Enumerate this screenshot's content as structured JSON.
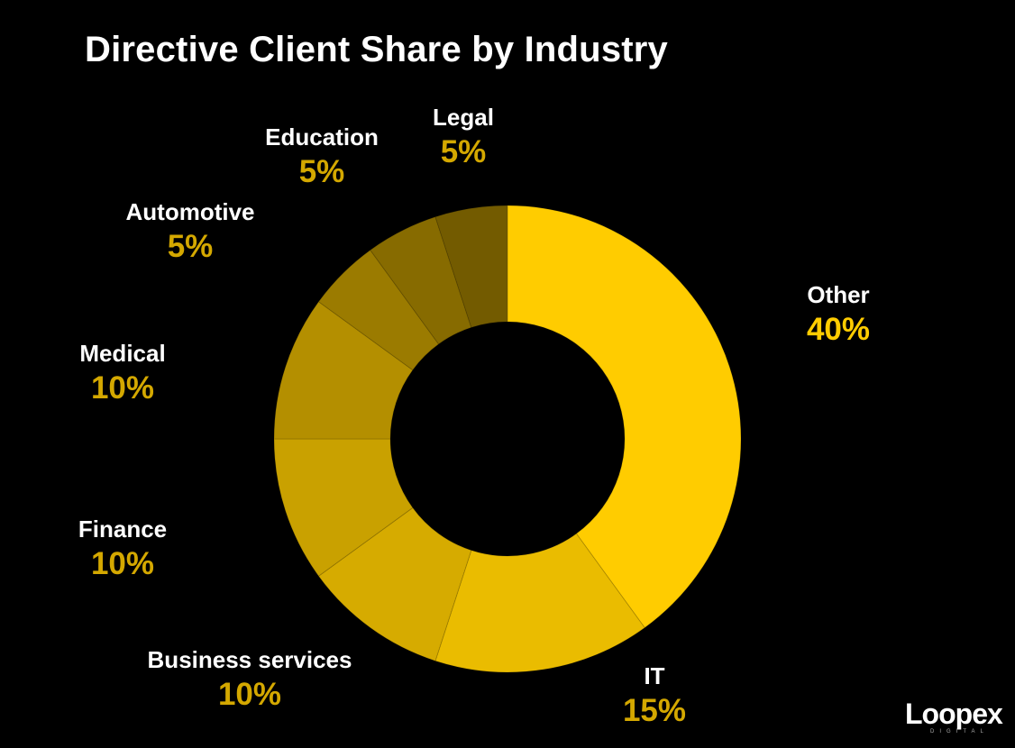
{
  "chart_data": {
    "type": "pie",
    "style": "donut",
    "title": "Directive Client Share by Industry",
    "slices": [
      {
        "label": "Other",
        "value": 40,
        "display": "40%",
        "color": "#FFCC00"
      },
      {
        "label": "IT",
        "value": 15,
        "display": "15%",
        "color": "#EABC00"
      },
      {
        "label": "Business services",
        "value": 10,
        "display": "10%",
        "color": "#D6AB00"
      },
      {
        "label": "Finance",
        "value": 10,
        "display": "10%",
        "color": "#C9A100"
      },
      {
        "label": "Medical",
        "value": 10,
        "display": "10%",
        "color": "#B48F00"
      },
      {
        "label": "Automotive",
        "value": 5,
        "display": "5%",
        "color": "#9B7B00"
      },
      {
        "label": "Education",
        "value": 5,
        "display": "5%",
        "color": "#876B00"
      },
      {
        "label": "Legal",
        "value": 5,
        "display": "5%",
        "color": "#735B00"
      }
    ],
    "start": "top",
    "direction": "clockwise",
    "value_label_color": "#D4A800",
    "background": "#000000"
  },
  "brand": {
    "logo_text": "Loopex",
    "logo_subtext": "DIGITAL"
  }
}
